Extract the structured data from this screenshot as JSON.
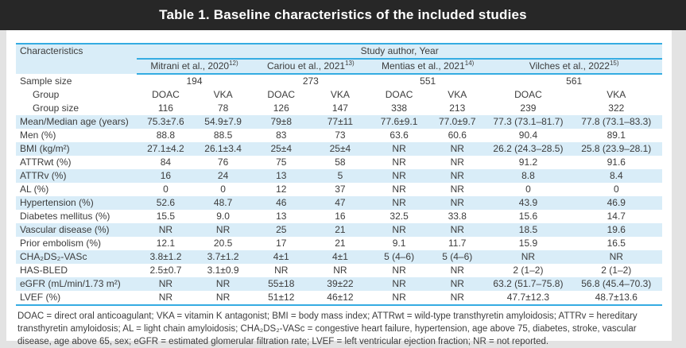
{
  "title": "Table 1. Baseline characteristics of the included studies",
  "table": {
    "characteristics_header": "Characteristics",
    "study_header": "Study author, Year",
    "studies": [
      {
        "name": "Mitrani et al., 2020",
        "ref": "12)"
      },
      {
        "name": "Cariou et al., 2021",
        "ref": "13)"
      },
      {
        "name": "Mentias et al., 2021",
        "ref": "14)"
      },
      {
        "name": "Vilches et al., 2022",
        "ref": "15)"
      }
    ],
    "rows": [
      {
        "label": "Sample size",
        "indent": false,
        "striped": false,
        "span2": true,
        "values": [
          "194",
          "273",
          "551",
          "561"
        ]
      },
      {
        "label": "Group",
        "indent": true,
        "striped": false,
        "values": [
          "DOAC",
          "VKA",
          "DOAC",
          "VKA",
          "DOAC",
          "VKA",
          "DOAC",
          "VKA"
        ]
      },
      {
        "label": "Group size",
        "indent": true,
        "striped": false,
        "values": [
          "116",
          "78",
          "126",
          "147",
          "338",
          "213",
          "239",
          "322"
        ]
      },
      {
        "label": "Mean/Median age (years)",
        "indent": false,
        "striped": true,
        "values": [
          "75.3±7.6",
          "54.9±7.9",
          "79±8",
          "77±11",
          "77.6±9.1",
          "77.0±9.7",
          "77.3 (73.1–81.7)",
          "77.8 (73.1–83.3)"
        ]
      },
      {
        "label": "Men (%)",
        "indent": false,
        "striped": false,
        "values": [
          "88.8",
          "88.5",
          "83",
          "73",
          "63.6",
          "60.6",
          "90.4",
          "89.1"
        ]
      },
      {
        "label": "BMI (kg/m²)",
        "indent": false,
        "striped": true,
        "values": [
          "27.1±4.2",
          "26.1±3.4",
          "25±4",
          "25±4",
          "NR",
          "NR",
          "26.2 (24.3–28.5)",
          "25.8 (23.9–28.1)"
        ]
      },
      {
        "label": "ATTRwt (%)",
        "indent": false,
        "striped": false,
        "values": [
          "84",
          "76",
          "75",
          "58",
          "NR",
          "NR",
          "91.2",
          "91.6"
        ]
      },
      {
        "label": "ATTRv (%)",
        "indent": false,
        "striped": true,
        "values": [
          "16",
          "24",
          "13",
          "5",
          "NR",
          "NR",
          "8.8",
          "8.4"
        ]
      },
      {
        "label": "AL (%)",
        "indent": false,
        "striped": false,
        "values": [
          "0",
          "0",
          "12",
          "37",
          "NR",
          "NR",
          "0",
          "0"
        ]
      },
      {
        "label": "Hypertension (%)",
        "indent": false,
        "striped": true,
        "values": [
          "52.6",
          "48.7",
          "46",
          "47",
          "NR",
          "NR",
          "43.9",
          "46.9"
        ]
      },
      {
        "label": "Diabetes mellitus (%)",
        "indent": false,
        "striped": false,
        "values": [
          "15.5",
          "9.0",
          "13",
          "16",
          "32.5",
          "33.8",
          "15.6",
          "14.7"
        ]
      },
      {
        "label": "Vascular disease (%)",
        "indent": false,
        "striped": true,
        "values": [
          "NR",
          "NR",
          "25",
          "21",
          "NR",
          "NR",
          "18.5",
          "19.6"
        ]
      },
      {
        "label": "Prior embolism (%)",
        "indent": false,
        "striped": false,
        "values": [
          "12.1",
          "20.5",
          "17",
          "21",
          "9.1",
          "11.7",
          "15.9",
          "16.5"
        ]
      },
      {
        "label": "CHA₂DS₂-VASc",
        "indent": false,
        "striped": true,
        "values": [
          "3.8±1.2",
          "3.7±1.2",
          "4±1",
          "4±1",
          "5 (4–6)",
          "5 (4–6)",
          "NR",
          "NR"
        ]
      },
      {
        "label": "HAS-BLED",
        "indent": false,
        "striped": false,
        "values": [
          "2.5±0.7",
          "3.1±0.9",
          "NR",
          "NR",
          "NR",
          "NR",
          "2 (1–2)",
          "2 (1–2)"
        ]
      },
      {
        "label": "eGFR (mL/min/1.73 m²)",
        "indent": false,
        "striped": true,
        "values": [
          "NR",
          "NR",
          "55±18",
          "39±22",
          "NR",
          "NR",
          "63.2 (51.7–75.8)",
          "56.8 (45.4–70.3)"
        ]
      },
      {
        "label": "LVEF (%)",
        "indent": false,
        "striped": false,
        "values": [
          "NR",
          "NR",
          "51±12",
          "46±12",
          "NR",
          "NR",
          "47.7±12.3",
          "48.7±13.6"
        ]
      }
    ]
  },
  "footnote": "DOAC = direct oral anticoagulant; VKA = vitamin K antagonist; BMI = body mass index; ATTRwt = wild-type transthyretin amyloidosis; ATTRv = hereditary transthyretin amyloidosis; AL = light chain amyloidosis; CHA₂DS₂-VASc = congestive heart failure, hypertension, age above 75, diabetes, stroke, vascular disease, age above 65, sex; eGFR = estimated glomerular filtration rate; LVEF = left ventricular ejection fraction; NR = not reported.",
  "colors": {
    "title_bar": "#272727",
    "rule_line": "#35ace2",
    "stripe": "#d9edf8",
    "text": "#3c3c3c"
  }
}
